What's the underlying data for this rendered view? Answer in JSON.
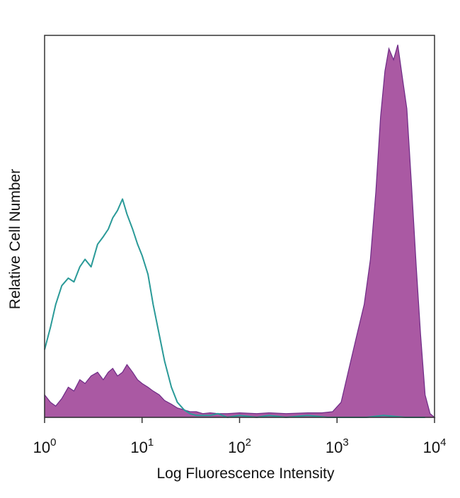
{
  "chart_data": {
    "type": "area",
    "title": "",
    "xlabel": "Log Fluorescence Intensity",
    "ylabel": "Relative Cell Number",
    "x_scale": "log",
    "xlim": [
      1,
      10000
    ],
    "ylim": [
      0,
      1
    ],
    "y_ticks": "none",
    "grid": false,
    "legend": "none",
    "x_ticks": [
      {
        "value": 1,
        "base": "10",
        "exp": "0"
      },
      {
        "value": 10,
        "base": "10",
        "exp": "1"
      },
      {
        "value": 100,
        "base": "10",
        "exp": "2"
      },
      {
        "value": 1000,
        "base": "10",
        "exp": "3"
      },
      {
        "value": 10000,
        "base": "10",
        "exp": "4"
      }
    ],
    "series": [
      {
        "style": "outline",
        "color": "#2a9a98",
        "x": [
          1.0,
          1.15,
          1.3,
          1.5,
          1.75,
          2.0,
          2.3,
          2.6,
          3.0,
          3.5,
          4.0,
          4.5,
          5.0,
          5.6,
          6.3,
          7.0,
          8.0,
          9.0,
          10.0,
          11.5,
          13.0,
          15.0,
          17.0,
          20.0,
          23.0,
          27.0,
          31.0,
          36.0,
          42.0,
          50.0,
          60.0,
          75.0,
          100.0,
          150.0,
          200.0,
          300.0,
          500.0,
          800.0,
          1200.0,
          2000.0,
          3000.0,
          5000.0,
          8000.0
        ],
        "y": [
          0.18,
          0.24,
          0.3,
          0.35,
          0.37,
          0.36,
          0.4,
          0.42,
          0.4,
          0.46,
          0.48,
          0.5,
          0.53,
          0.55,
          0.58,
          0.54,
          0.5,
          0.46,
          0.43,
          0.38,
          0.3,
          0.22,
          0.15,
          0.08,
          0.04,
          0.02,
          0.01,
          0.005,
          0.005,
          0.005,
          0.01,
          0.0,
          0.005,
          0.0,
          0.005,
          0.0,
          0.005,
          0.0,
          0.0,
          0.0,
          0.005,
          0.0,
          0.0
        ]
      },
      {
        "style": "filled",
        "color": "#9b3c93",
        "x": [
          1.0,
          1.15,
          1.3,
          1.5,
          1.75,
          2.0,
          2.3,
          2.6,
          3.0,
          3.5,
          4.0,
          4.5,
          5.0,
          5.6,
          6.3,
          7.0,
          8.0,
          9.0,
          10.0,
          11.5,
          13.0,
          15.0,
          17.0,
          20.0,
          23.0,
          27.0,
          31.0,
          36.0,
          42.0,
          50.0,
          60.0,
          75.0,
          100.0,
          150.0,
          200.0,
          300.0,
          500.0,
          700.0,
          900.0,
          1100.0,
          1300.0,
          1600.0,
          1900.0,
          2200.0,
          2500.0,
          2800.0,
          3100.0,
          3400.0,
          3800.0,
          4200.0,
          4700.0,
          5200.0,
          5800.0,
          6500.0,
          7200.0,
          8000.0,
          9000.0,
          10000.0
        ],
        "y": [
          0.06,
          0.04,
          0.03,
          0.05,
          0.08,
          0.07,
          0.1,
          0.09,
          0.11,
          0.12,
          0.1,
          0.12,
          0.13,
          0.11,
          0.12,
          0.14,
          0.12,
          0.1,
          0.09,
          0.08,
          0.07,
          0.06,
          0.045,
          0.035,
          0.025,
          0.02,
          0.015,
          0.015,
          0.01,
          0.012,
          0.01,
          0.01,
          0.012,
          0.01,
          0.012,
          0.01,
          0.012,
          0.012,
          0.015,
          0.04,
          0.12,
          0.22,
          0.3,
          0.42,
          0.6,
          0.8,
          0.92,
          0.98,
          0.95,
          0.99,
          0.9,
          0.82,
          0.62,
          0.4,
          0.22,
          0.06,
          0.01,
          0.0
        ]
      }
    ]
  }
}
